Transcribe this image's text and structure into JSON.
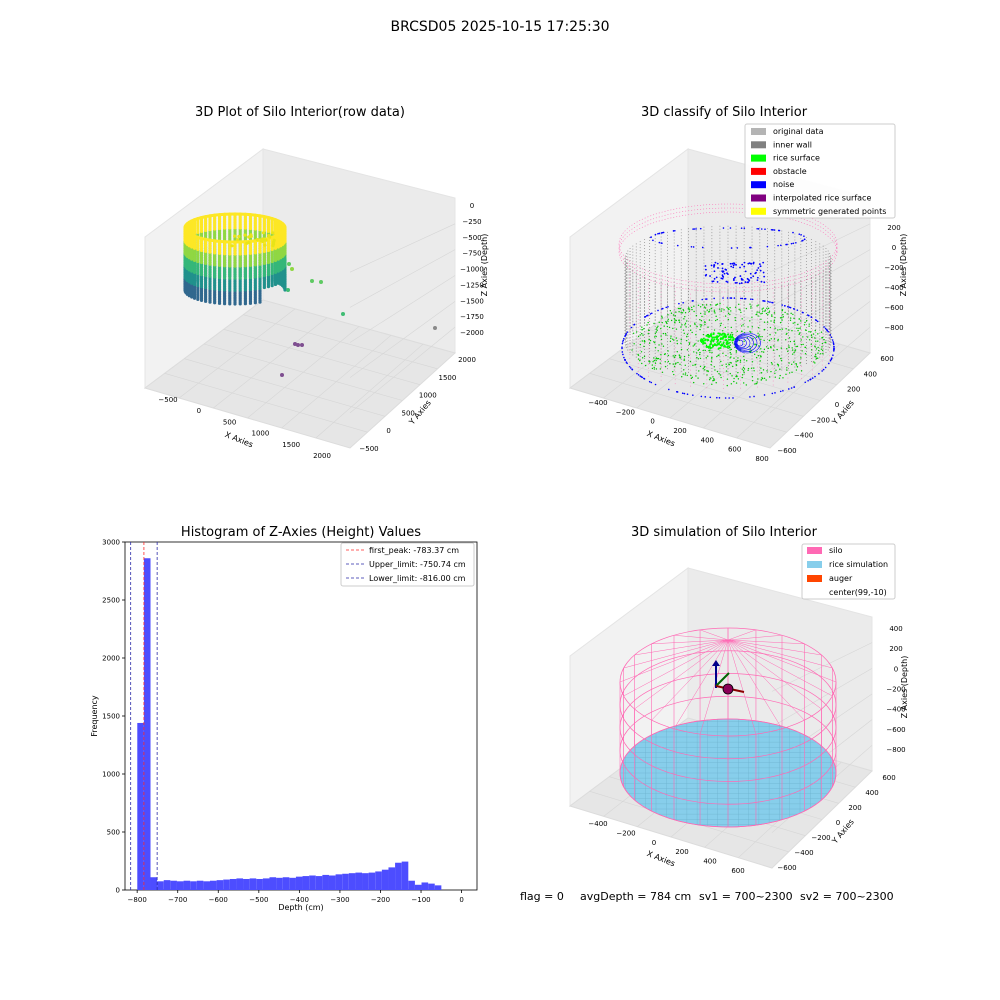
{
  "suptitle": "BRCSD05 2025-10-15 17:25:30",
  "footer": {
    "flag": "flag = 0",
    "avg": "avgDepth = 784 cm",
    "sv1": "sv1 = 700~2300",
    "sv2": "sv2 = 700~2300"
  },
  "chart_data": [
    {
      "type": "scatter3d",
      "title": "3D Plot of Silo Interior(row data)",
      "xlabel": "X Axies",
      "ylabel": "Y Axies",
      "zlabel": "Z Axies (Depth)",
      "xticks": [
        "−500",
        "0",
        "500",
        "1000",
        "1500",
        "2000"
      ],
      "yticks": [
        "−500",
        "0",
        "500",
        "1000",
        "1500",
        "2000"
      ],
      "zticks": [
        "0",
        "−250",
        "−500",
        "−750",
        "−1000",
        "−1250",
        "−1500",
        "−1750",
        "−2000"
      ],
      "colormap": [
        "#440154",
        "#31688e",
        "#21918c",
        "#35b779",
        "#90d743",
        "#fde725"
      ]
    },
    {
      "type": "scatter3d",
      "title": "3D classify of Silo Interior",
      "xlabel": "X Axies",
      "ylabel": "Y Axies",
      "zlabel": "Z Axies (Depth)",
      "xticks": [
        "−400",
        "−200",
        "0",
        "200",
        "400",
        "600",
        "800"
      ],
      "yticks": [
        "−600",
        "−400",
        "−200",
        "0",
        "200",
        "400",
        "600"
      ],
      "zticks": [
        "200",
        "0",
        "−200",
        "−400",
        "−600",
        "−800"
      ],
      "legend": [
        {
          "label": "original data",
          "color": "#b4b4b4"
        },
        {
          "label": "inner wall",
          "color": "#808080"
        },
        {
          "label": "rice surface",
          "color": "#00ff00"
        },
        {
          "label": "obstacle",
          "color": "#ff0000"
        },
        {
          "label": "noise",
          "color": "#0000ff"
        },
        {
          "label": "interpolated rice surface",
          "color": "#800080"
        },
        {
          "label": "symmetric generated points",
          "color": "#ffff00"
        }
      ]
    },
    {
      "type": "bar",
      "title": "Histogram of Z-Axies (Height) Values",
      "xlabel": "Depth (cm)",
      "ylabel": "Frequency",
      "xlim": [
        -830,
        38
      ],
      "ylim": [
        0,
        3000
      ],
      "xticks": [
        -800,
        -700,
        -600,
        -500,
        -400,
        -300,
        -200,
        -100,
        0
      ],
      "yticks": [
        0,
        500,
        1000,
        1500,
        2000,
        2500,
        3000
      ],
      "bin_width": 16.3,
      "bin_start": -816.0,
      "values": [
        0,
        1440,
        2860,
        110,
        75,
        85,
        80,
        75,
        80,
        75,
        80,
        75,
        80,
        85,
        90,
        95,
        100,
        95,
        100,
        95,
        100,
        110,
        105,
        110,
        105,
        115,
        120,
        125,
        120,
        130,
        125,
        135,
        140,
        145,
        150,
        145,
        150,
        160,
        175,
        195,
        235,
        245,
        80,
        45,
        65,
        55,
        40
      ],
      "bar_color": "#4d4dff",
      "vlines": [
        {
          "label": "first_peak: -783.37 cm",
          "x": -783.37,
          "color": "#ff2a2a"
        },
        {
          "label": "Upper_limit: -750.74 cm",
          "x": -750.74,
          "color": "#2a2aa8"
        },
        {
          "label": "Lower_limit: -816.00 cm",
          "x": -816.0,
          "color": "#2a2aa8"
        }
      ]
    },
    {
      "type": "surface3d",
      "title": "3D simulation of Silo Interior",
      "xlabel": "X Axies",
      "ylabel": "Y Axies",
      "zlabel": "Z Axies (Depth)",
      "xticks": [
        "−400",
        "−200",
        "0",
        "200",
        "400",
        "600"
      ],
      "yticks": [
        "−600",
        "−400",
        "−200",
        "0",
        "200",
        "400",
        "600"
      ],
      "zticks": [
        "400",
        "200",
        "0",
        "−200",
        "−400",
        "−600",
        "−800"
      ],
      "legend": [
        {
          "label": "silo",
          "color": "#ff69b4"
        },
        {
          "label": "rice simulation",
          "color": "#87ceeb"
        },
        {
          "label": "auger",
          "color": "#ff4500"
        },
        {
          "label": "center(99,-10)",
          "color": "#ffffff"
        }
      ]
    }
  ]
}
